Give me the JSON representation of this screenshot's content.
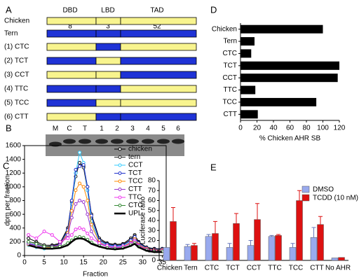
{
  "panel_labels": [
    "A",
    "B",
    "C",
    "D",
    "E"
  ],
  "diagram": {
    "domains": [
      "DBD",
      "LBD",
      "TAD"
    ],
    "differences": [
      "8",
      "3",
      "52"
    ],
    "rows": [
      {
        "label": "Chicken",
        "segment_colors": [
          "#f8f48e",
          "#f8f48e",
          "#f8f48e"
        ]
      },
      {
        "label": "Tern",
        "segment_colors": [
          "#1f33d6",
          "#1f33d6",
          "#1f33d6"
        ]
      },
      {
        "label": "(1) CTC",
        "segment_colors": [
          "#f8f48e",
          "#1f33d6",
          "#f8f48e"
        ]
      },
      {
        "label": "(2) TCT",
        "segment_colors": [
          "#1f33d6",
          "#f8f48e",
          "#1f33d6"
        ]
      },
      {
        "label": "(3) CCT",
        "segment_colors": [
          "#f8f48e",
          "#f8f48e",
          "#1f33d6"
        ]
      },
      {
        "label": "(4) TTC",
        "segment_colors": [
          "#1f33d6",
          "#1f33d6",
          "#f8f48e"
        ]
      },
      {
        "label": "(5) TCC",
        "segment_colors": [
          "#1f33d6",
          "#f8f48e",
          "#f8f48e"
        ]
      },
      {
        "label": "(6) CTT",
        "segment_colors": [
          "#f8f48e",
          "#1f33d6",
          "#1f33d6"
        ]
      }
    ]
  },
  "gel": {
    "lanes": [
      "M",
      "C",
      "T",
      "1",
      "2",
      "3",
      "4",
      "5",
      "6"
    ]
  },
  "chart_data": [
    {
      "type": "line",
      "xlabel": "Fraction",
      "ylabel": "dpm per fraction",
      "x": [
        1,
        3,
        5,
        7,
        9,
        11,
        12,
        13,
        14,
        15,
        16,
        17,
        19,
        21,
        23,
        25,
        27,
        28,
        29,
        31,
        33,
        35
      ],
      "xlim": [
        0,
        36
      ],
      "xticks": [
        0,
        5,
        10,
        15,
        20,
        25,
        30,
        35
      ],
      "ylim": [
        0,
        1600
      ],
      "yticks": [
        0,
        200,
        400,
        600,
        800,
        1000,
        1200,
        1400,
        1600
      ],
      "series": [
        {
          "name": "chicken",
          "color": "#000000",
          "values": [
            250,
            200,
            150,
            150,
            180,
            400,
            800,
            1200,
            1350,
            1300,
            1000,
            600,
            250,
            180,
            160,
            170,
            250,
            300,
            200,
            120,
            100,
            100
          ]
        },
        {
          "name": "tern",
          "color": "#222222",
          "values": [
            200,
            180,
            130,
            140,
            170,
            380,
            780,
            1150,
            1350,
            1280,
            950,
            550,
            230,
            170,
            150,
            160,
            230,
            280,
            190,
            110,
            90,
            90
          ]
        },
        {
          "name": "CCT",
          "color": "#33ccff",
          "values": [
            150,
            120,
            100,
            110,
            150,
            350,
            750,
            1200,
            1500,
            1350,
            950,
            500,
            200,
            150,
            130,
            140,
            200,
            250,
            170,
            100,
            80,
            80
          ]
        },
        {
          "name": "TCT",
          "color": "#2233cc",
          "values": [
            180,
            150,
            120,
            130,
            160,
            370,
            800,
            1250,
            1300,
            1320,
            1000,
            580,
            220,
            160,
            140,
            150,
            220,
            270,
            180,
            110,
            90,
            90
          ]
        },
        {
          "name": "TCC",
          "color": "#ff8800",
          "values": [
            160,
            130,
            110,
            120,
            150,
            330,
            650,
            950,
            1050,
            1000,
            800,
            450,
            190,
            140,
            120,
            130,
            190,
            240,
            160,
            100,
            80,
            80
          ]
        },
        {
          "name": "CTT",
          "color": "#9933cc",
          "values": [
            170,
            140,
            120,
            130,
            150,
            300,
            550,
            750,
            800,
            780,
            600,
            350,
            170,
            130,
            110,
            120,
            180,
            220,
            150,
            90,
            70,
            70
          ]
        },
        {
          "name": "TTC",
          "color": "#ee33ee",
          "values": [
            300,
            250,
            350,
            300,
            200,
            250,
            300,
            380,
            400,
            380,
            320,
            250,
            180,
            140,
            120,
            130,
            170,
            200,
            140,
            90,
            70,
            70
          ]
        },
        {
          "name": "CTC",
          "color": "#338833",
          "values": [
            200,
            170,
            130,
            120,
            130,
            180,
            220,
            260,
            270,
            260,
            230,
            190,
            140,
            110,
            100,
            110,
            150,
            180,
            130,
            80,
            60,
            60
          ]
        },
        {
          "name": "UPL",
          "color": "#000000",
          "markers": false,
          "line_width": 2.5,
          "values": [
            150,
            120,
            100,
            100,
            110,
            150,
            200,
            240,
            250,
            240,
            210,
            170,
            130,
            100,
            90,
            100,
            140,
            170,
            120,
            70,
            50,
            50
          ]
        }
      ]
    },
    {
      "type": "bar",
      "orientation": "horizontal",
      "xlabel": "% Chicken AHR SB",
      "categories": [
        "Chicken",
        "Tern",
        "CTC",
        "TCT",
        "CCT",
        "TTC",
        "TCC",
        "CTT"
      ],
      "values": [
        100,
        17,
        13,
        120,
        118,
        18,
        92,
        21
      ],
      "color": "#000000",
      "xlim": [
        0,
        120
      ],
      "xticks": [
        0,
        20,
        40,
        60,
        80,
        100,
        120
      ]
    },
    {
      "type": "bar",
      "orientation": "vertical",
      "ylabel": "Luciferase ratio",
      "categories": [
        "Chicken",
        "Tern",
        "CTC",
        "TCT",
        "CCT",
        "TTC",
        "TCC",
        "CTT",
        "No AHR"
      ],
      "ylim": [
        0,
        80
      ],
      "yticks": [
        0,
        10,
        20,
        30,
        40,
        50,
        60,
        70,
        80
      ],
      "series": [
        {
          "name": "DMSO",
          "color": "#99aaee",
          "values": [
            13,
            14,
            24,
            13,
            15,
            24,
            13,
            23,
            2.5
          ],
          "errors": [
            0,
            2,
            2,
            4,
            5,
            1,
            4,
            10,
            0
          ]
        },
        {
          "name": "TCDD (10 nM)",
          "color": "#dd1111",
          "values": [
            39,
            15,
            27,
            37,
            41,
            25,
            60,
            36,
            3
          ],
          "errors": [
            14,
            2,
            12,
            10,
            16,
            1,
            10,
            8,
            0
          ]
        }
      ]
    }
  ]
}
